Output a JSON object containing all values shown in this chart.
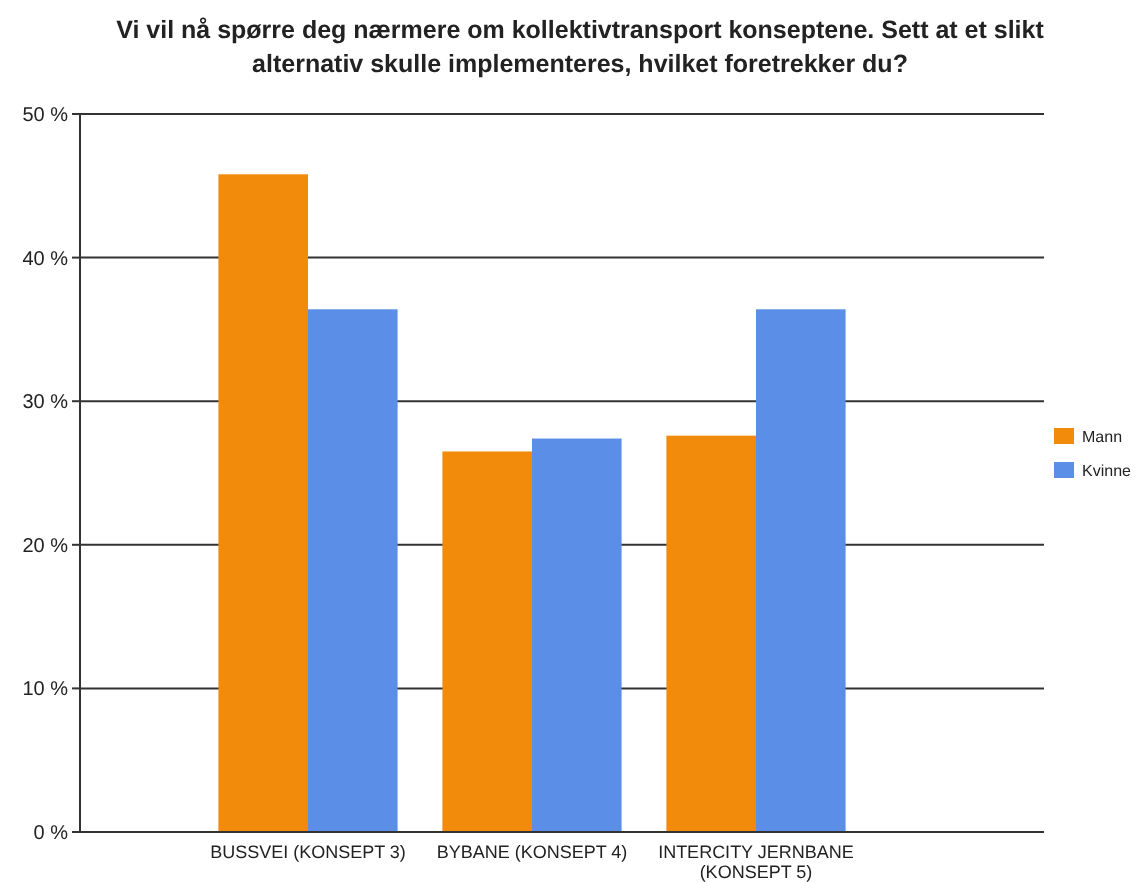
{
  "chart_data": {
    "type": "bar",
    "title": "Vi vil nå spørre deg nærmere om kollektivtransport konseptene. Sett at et slikt alternativ skulle implementeres, hvilket foretrekker du?",
    "categories": [
      "BUSSVEI (KONSEPT 3)",
      "BYBANE (KONSEPT 4)",
      "INTERCITY JERNBANE (KONSEPT 5)"
    ],
    "series": [
      {
        "name": "Mann",
        "color": "#f28a0c",
        "values": [
          45.8,
          26.5,
          27.6
        ]
      },
      {
        "name": "Kvinne",
        "color": "#5b8ee6",
        "values": [
          36.4,
          27.4,
          36.4
        ]
      }
    ],
    "ylim": [
      0,
      50
    ],
    "yticks": [
      {
        "value": 0,
        "label": "0 %"
      },
      {
        "value": 10,
        "label": "10 %"
      },
      {
        "value": 20,
        "label": "20 %"
      },
      {
        "value": 30,
        "label": "30 %"
      },
      {
        "value": 40,
        "label": "40 %"
      },
      {
        "value": 50,
        "label": "50 %"
      }
    ],
    "grid": "y",
    "legend": "right"
  }
}
